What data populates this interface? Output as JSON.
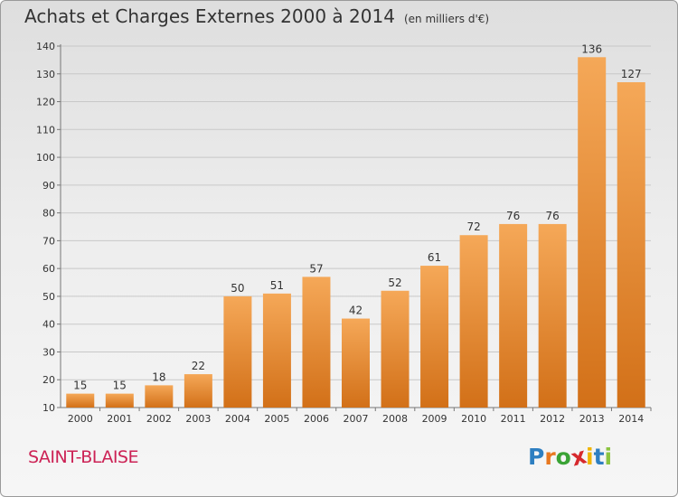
{
  "chart_data": {
    "type": "bar",
    "title": "Achats et Charges Externes 2000 à 2014",
    "unit_note": "(en milliers d'€)",
    "categories": [
      "2000",
      "2001",
      "2002",
      "2003",
      "2004",
      "2005",
      "2006",
      "2007",
      "2008",
      "2009",
      "2010",
      "2011",
      "2012",
      "2013",
      "2014"
    ],
    "values": [
      15,
      15,
      18,
      22,
      50,
      51,
      57,
      42,
      52,
      61,
      72,
      76,
      76,
      136,
      127
    ],
    "ylim": [
      10,
      140
    ],
    "yticks": [
      10,
      20,
      30,
      40,
      50,
      60,
      70,
      80,
      90,
      100,
      110,
      120,
      130,
      140
    ],
    "xlabel": "",
    "ylabel": "",
    "grid": true,
    "bar_colors": {
      "top": "#f5a858",
      "bottom": "#d27018"
    }
  },
  "footer": {
    "commune": "SAINT-BLAISE",
    "logo_letters": [
      {
        "ch": "P",
        "color": "#2e7fc1"
      },
      {
        "ch": "r",
        "color": "#e87820"
      },
      {
        "ch": "o",
        "color": "#3aa335"
      },
      {
        "ch": "x",
        "color": "#d6292d"
      },
      {
        "ch": "i",
        "color": "#f0b400"
      },
      {
        "ch": "t",
        "color": "#2e7fc1"
      },
      {
        "ch": "i",
        "color": "#8bc43f"
      }
    ]
  }
}
